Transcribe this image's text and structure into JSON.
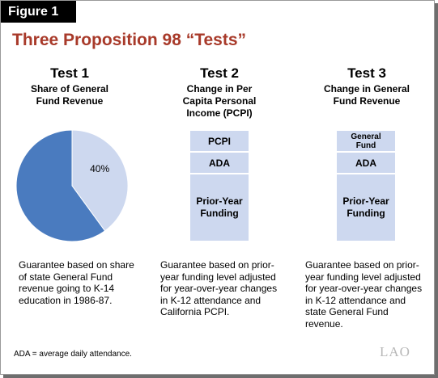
{
  "figure_label": "Figure 1",
  "title": "Three Proposition 98 “Tests”",
  "tests": [
    {
      "heading": "Test 1",
      "subtitle_lines": [
        "Share of General",
        "Fund Revenue"
      ],
      "description_lines": [
        "Guarantee based on share",
        "of state General Fund",
        "revenue going to K-14",
        "education in 1986-87."
      ]
    },
    {
      "heading": "Test 2",
      "subtitle_lines": [
        "Change in Per",
        "Capita Personal",
        "Income (PCPI)"
      ],
      "blocks": [
        "PCPI",
        "ADA",
        "Prior-Year\nFunding"
      ],
      "description_lines": [
        "Guarantee based on prior-",
        "year funding level adjusted",
        "for year-over-year changes",
        "in K-12 attendance and",
        "California PCPI."
      ]
    },
    {
      "heading": "Test 3",
      "subtitle_lines": [
        "Change in General",
        "Fund Revenue"
      ],
      "blocks": [
        "General\nFund",
        "ADA",
        "Prior-Year\nFunding"
      ],
      "description_lines": [
        "Guarantee based on prior-",
        "year funding level adjusted",
        "for year-over-year changes",
        "in K-12 attendance and",
        "state General Fund revenue."
      ]
    }
  ],
  "chart_data": {
    "type": "pie",
    "slices": [
      {
        "label": "40%",
        "value": 40,
        "color": "#cdd8ef"
      },
      {
        "label": "",
        "value": 60,
        "color": "#4a7bbf"
      }
    ]
  },
  "footnote": "ADA = average daily attendance.",
  "logo": "LAO",
  "colors": {
    "title": "#a83a2a",
    "pie_main": "#4a7bbf",
    "pie_share": "#cdd8ef",
    "block_fill": "#cdd8ef"
  }
}
